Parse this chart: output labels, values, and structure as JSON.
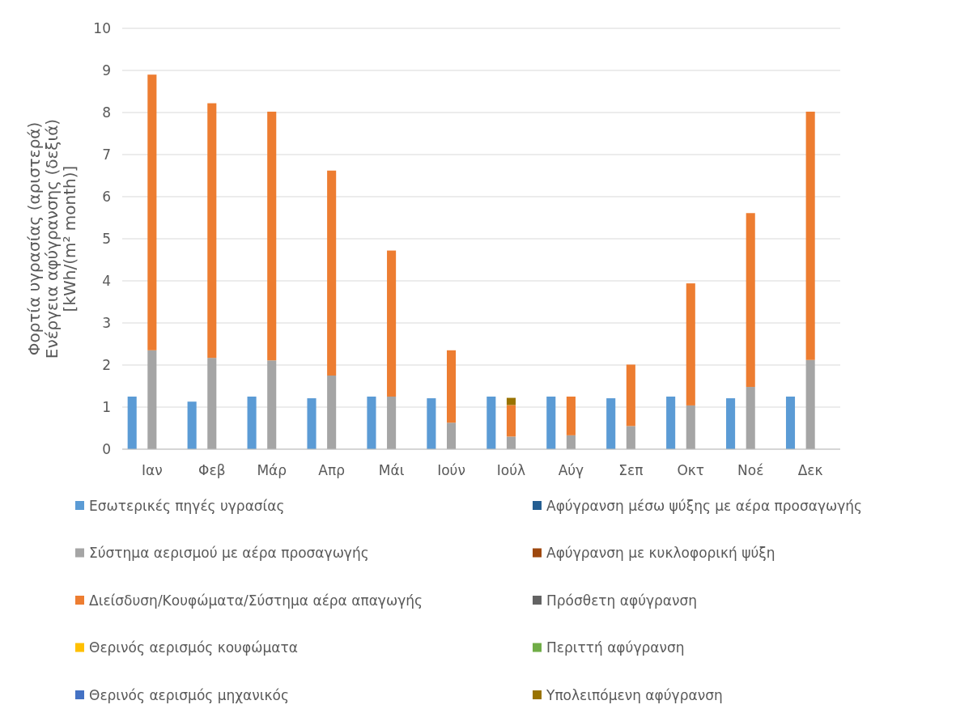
{
  "chart_data": {
    "type": "bar",
    "stacked": true,
    "ylabel": "Φορτία υγρασίας (αριστερά)\nΕνέργεια αφύγρανσης (δεξιά)\n[kWh/(m² month)]",
    "categories": [
      null,
      "Ιαν",
      null,
      null,
      "Φεβ",
      null,
      null,
      "Μάρ",
      null,
      null,
      "Απρ",
      null,
      null,
      "Μάι",
      null,
      null,
      "Ιούν",
      null,
      null,
      "Ιούλ",
      null,
      null,
      "Αύγ",
      null,
      null,
      "Σεπ",
      null,
      null,
      "Οκτ",
      null,
      null,
      "Νοέ",
      null,
      null,
      "Δεκ",
      null
    ],
    "ylim": [
      0,
      10
    ],
    "yticks": [
      0,
      1,
      2,
      3,
      4,
      5,
      6,
      7,
      8,
      9,
      10
    ],
    "grid": "y",
    "legend": "bottom",
    "series": [
      {
        "name": "Εσωτερικές πηγές υγρασίας",
        "color": "#5b9bd5",
        "values": [
          1.25,
          null,
          null,
          1.13,
          null,
          null,
          1.25,
          null,
          null,
          1.21,
          null,
          null,
          1.25,
          null,
          null,
          1.21,
          null,
          null,
          1.25,
          null,
          null,
          1.25,
          null,
          null,
          1.21,
          null,
          null,
          1.25,
          null,
          null,
          1.21,
          null,
          null,
          1.25,
          null,
          null
        ]
      },
      {
        "name": "Αφύγρανση μέσω ψύξης με αέρα προσαγωγής",
        "color": "#255e91",
        "values": [
          null,
          null,
          null,
          null,
          null,
          null,
          null,
          null,
          null,
          null,
          null,
          null,
          null,
          null,
          null,
          null,
          null,
          null,
          null,
          null,
          null,
          null,
          null,
          null,
          null,
          null,
          null,
          null,
          null,
          null,
          null,
          null,
          null,
          null,
          null,
          null
        ]
      },
      {
        "name": "Σύστημα αερισμού με αέρα προσαγωγής",
        "color": "#a5a5a5",
        "values": [
          null,
          2.35,
          null,
          null,
          2.17,
          null,
          null,
          2.11,
          null,
          null,
          1.75,
          null,
          null,
          1.25,
          null,
          null,
          0.63,
          null,
          null,
          0.3,
          null,
          null,
          0.33,
          null,
          null,
          0.55,
          null,
          null,
          1.04,
          null,
          null,
          1.48,
          null,
          null,
          2.12,
          null
        ]
      },
      {
        "name": "Αφύγρανση με κυκλοφορική ψύξη",
        "color": "#9e480e",
        "values": [
          null,
          null,
          null,
          null,
          null,
          null,
          null,
          null,
          null,
          null,
          null,
          null,
          null,
          null,
          null,
          null,
          null,
          null,
          null,
          null,
          null,
          null,
          null,
          null,
          null,
          null,
          null,
          null,
          null,
          null,
          null,
          null,
          null,
          null,
          null,
          null
        ]
      },
      {
        "name": "Διείσδυση/Κουφώματα/Σύστημα αέρα απαγωγής",
        "color": "#ed7d31",
        "values": [
          null,
          6.55,
          null,
          null,
          6.05,
          null,
          null,
          5.91,
          null,
          null,
          4.87,
          null,
          null,
          3.47,
          null,
          null,
          1.72,
          null,
          null,
          0.75,
          null,
          null,
          0.92,
          null,
          null,
          1.46,
          null,
          null,
          2.9,
          null,
          null,
          4.13,
          null,
          null,
          5.9,
          null
        ]
      },
      {
        "name": "Πρόσθετη αφύγρανση",
        "color": "#636363",
        "values": [
          null,
          null,
          null,
          null,
          null,
          null,
          null,
          null,
          null,
          null,
          null,
          null,
          null,
          null,
          null,
          null,
          null,
          null,
          null,
          null,
          null,
          null,
          null,
          null,
          null,
          null,
          null,
          null,
          null,
          null,
          null,
          null,
          null,
          null,
          null,
          null
        ]
      },
      {
        "name": "Θερινός αερισμός κουφώματα",
        "color": "#ffc000",
        "values": [
          null,
          null,
          null,
          null,
          null,
          null,
          null,
          null,
          null,
          null,
          null,
          null,
          null,
          null,
          null,
          null,
          null,
          null,
          null,
          null,
          null,
          null,
          null,
          null,
          null,
          null,
          null,
          null,
          null,
          null,
          null,
          null,
          null,
          null,
          null,
          null
        ]
      },
      {
        "name": "Περιττή αφύγρανση",
        "color": "#70ad47",
        "values": [
          null,
          null,
          null,
          null,
          null,
          null,
          null,
          null,
          null,
          null,
          null,
          null,
          null,
          null,
          null,
          null,
          null,
          null,
          null,
          null,
          null,
          null,
          null,
          null,
          null,
          null,
          null,
          null,
          null,
          null,
          null,
          null,
          null,
          null,
          null,
          null
        ]
      },
      {
        "name": "Θερινός αερισμός μηχανικός",
        "color": "#4472c4",
        "values": [
          null,
          null,
          null,
          null,
          null,
          null,
          null,
          null,
          null,
          null,
          null,
          null,
          null,
          null,
          null,
          null,
          null,
          null,
          null,
          null,
          null,
          null,
          null,
          null,
          null,
          null,
          null,
          null,
          null,
          null,
          null,
          null,
          null,
          null,
          null,
          null
        ]
      },
      {
        "name": "Υπολειπόμενη αφύγρανση",
        "color": "#997300",
        "values": [
          null,
          null,
          null,
          null,
          null,
          null,
          null,
          null,
          null,
          null,
          null,
          null,
          null,
          null,
          null,
          null,
          null,
          null,
          null,
          0.17,
          null,
          null,
          null,
          null,
          null,
          null,
          null,
          null,
          null,
          null,
          null,
          null,
          null,
          null,
          null,
          null
        ]
      }
    ]
  }
}
